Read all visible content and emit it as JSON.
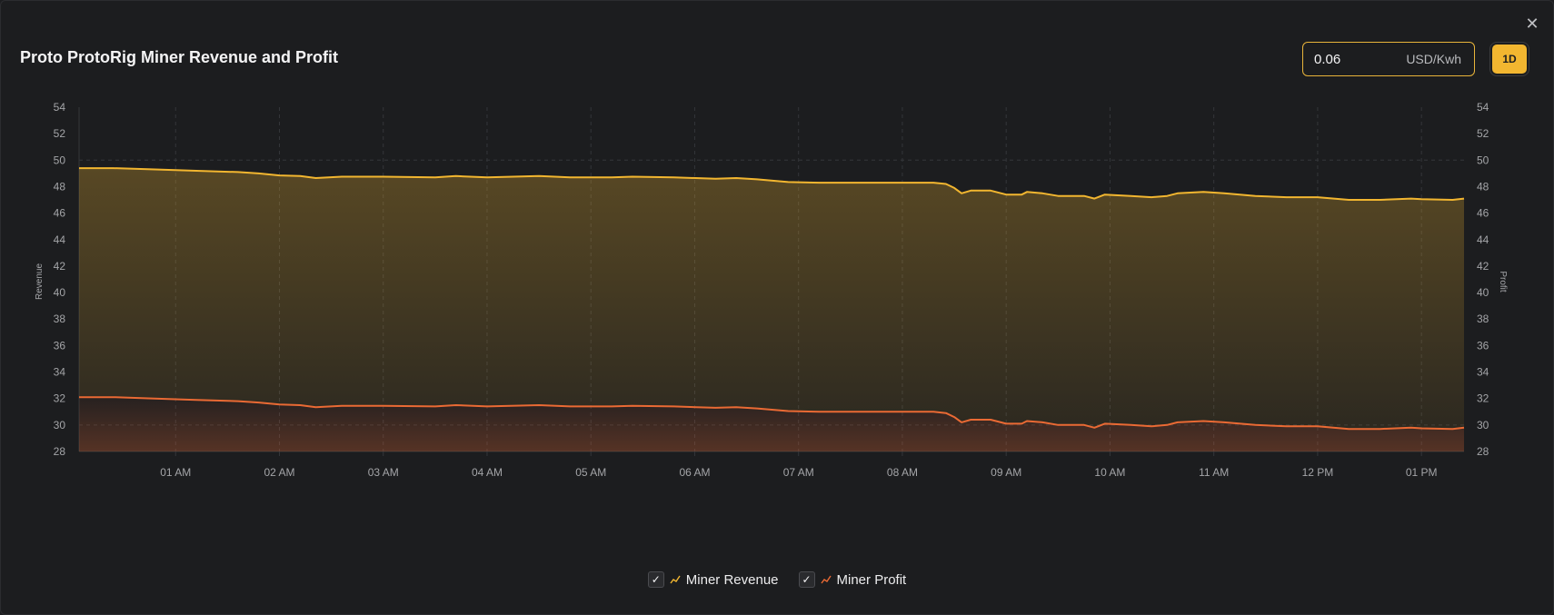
{
  "header": {
    "title": "Proto ProtoRig Miner Revenue and Profit",
    "price_value": "0.06",
    "price_unit": "USD/Kwh",
    "range_button": "1D",
    "close_symbol": "✕"
  },
  "colors": {
    "revenue": "#f2b630",
    "profit": "#ea6a34",
    "grid": "#34363a",
    "background": "#1c1d1f"
  },
  "legend": [
    {
      "label": "Miner Revenue",
      "checked": true,
      "color": "#f2b630"
    },
    {
      "label": "Miner Profit",
      "checked": true,
      "color": "#ea6a34"
    }
  ],
  "chart_data": {
    "type": "area",
    "ylabel": "Revenue",
    "y2label": "Profit",
    "ylim": [
      28,
      54
    ],
    "y2lim": [
      28,
      54
    ],
    "yticks": [
      28,
      30,
      32,
      34,
      36,
      38,
      40,
      42,
      44,
      46,
      48,
      50,
      52,
      54
    ],
    "xlim": [
      0.07,
      13.41
    ],
    "xticks": [
      {
        "x": 1,
        "label": "01 AM"
      },
      {
        "x": 2,
        "label": "02 AM"
      },
      {
        "x": 3,
        "label": "03 AM"
      },
      {
        "x": 4,
        "label": "04 AM"
      },
      {
        "x": 5,
        "label": "05 AM"
      },
      {
        "x": 6,
        "label": "06 AM"
      },
      {
        "x": 7,
        "label": "07 AM"
      },
      {
        "x": 8,
        "label": "08 AM"
      },
      {
        "x": 9,
        "label": "09 AM"
      },
      {
        "x": 10,
        "label": "10 AM"
      },
      {
        "x": 11,
        "label": "11 AM"
      },
      {
        "x": 12,
        "label": "12 PM"
      },
      {
        "x": 13,
        "label": "01 PM"
      }
    ],
    "grid": true,
    "legend_position": "bottom-center",
    "series": [
      {
        "name": "Miner Revenue",
        "axis": "left",
        "points": [
          [
            0.07,
            49.4
          ],
          [
            0.4,
            49.4
          ],
          [
            0.8,
            49.3
          ],
          [
            1.2,
            49.2
          ],
          [
            1.6,
            49.1
          ],
          [
            1.8,
            49.0
          ],
          [
            2.0,
            48.85
          ],
          [
            2.2,
            48.8
          ],
          [
            2.35,
            48.65
          ],
          [
            2.6,
            48.75
          ],
          [
            3.0,
            48.75
          ],
          [
            3.5,
            48.7
          ],
          [
            3.7,
            48.8
          ],
          [
            4.0,
            48.7
          ],
          [
            4.5,
            48.8
          ],
          [
            4.8,
            48.7
          ],
          [
            5.2,
            48.7
          ],
          [
            5.4,
            48.75
          ],
          [
            5.8,
            48.7
          ],
          [
            6.2,
            48.6
          ],
          [
            6.4,
            48.65
          ],
          [
            6.6,
            48.55
          ],
          [
            6.9,
            48.35
          ],
          [
            7.2,
            48.3
          ],
          [
            7.6,
            48.3
          ],
          [
            8.0,
            48.3
          ],
          [
            8.3,
            48.3
          ],
          [
            8.42,
            48.2
          ],
          [
            8.5,
            47.9
          ],
          [
            8.57,
            47.5
          ],
          [
            8.66,
            47.7
          ],
          [
            8.85,
            47.7
          ],
          [
            9.0,
            47.4
          ],
          [
            9.15,
            47.4
          ],
          [
            9.2,
            47.6
          ],
          [
            9.35,
            47.5
          ],
          [
            9.5,
            47.3
          ],
          [
            9.75,
            47.3
          ],
          [
            9.85,
            47.1
          ],
          [
            9.95,
            47.4
          ],
          [
            10.2,
            47.3
          ],
          [
            10.4,
            47.2
          ],
          [
            10.55,
            47.3
          ],
          [
            10.65,
            47.5
          ],
          [
            10.9,
            47.6
          ],
          [
            11.1,
            47.5
          ],
          [
            11.4,
            47.3
          ],
          [
            11.7,
            47.2
          ],
          [
            12.0,
            47.2
          ],
          [
            12.3,
            47.0
          ],
          [
            12.6,
            47.0
          ],
          [
            12.9,
            47.1
          ],
          [
            13.0,
            47.05
          ],
          [
            13.3,
            47.0
          ],
          [
            13.41,
            47.1
          ]
        ]
      },
      {
        "name": "Miner Profit",
        "axis": "right",
        "points": [
          [
            0.07,
            32.1
          ],
          [
            0.4,
            32.1
          ],
          [
            0.8,
            32.0
          ],
          [
            1.2,
            31.9
          ],
          [
            1.6,
            31.8
          ],
          [
            1.8,
            31.7
          ],
          [
            2.0,
            31.55
          ],
          [
            2.2,
            31.5
          ],
          [
            2.35,
            31.35
          ],
          [
            2.6,
            31.45
          ],
          [
            3.0,
            31.45
          ],
          [
            3.5,
            31.4
          ],
          [
            3.7,
            31.5
          ],
          [
            4.0,
            31.4
          ],
          [
            4.5,
            31.5
          ],
          [
            4.8,
            31.4
          ],
          [
            5.2,
            31.4
          ],
          [
            5.4,
            31.45
          ],
          [
            5.8,
            31.4
          ],
          [
            6.2,
            31.3
          ],
          [
            6.4,
            31.35
          ],
          [
            6.6,
            31.25
          ],
          [
            6.9,
            31.05
          ],
          [
            7.2,
            31.0
          ],
          [
            7.6,
            31.0
          ],
          [
            8.0,
            31.0
          ],
          [
            8.3,
            31.0
          ],
          [
            8.42,
            30.9
          ],
          [
            8.5,
            30.6
          ],
          [
            8.57,
            30.2
          ],
          [
            8.66,
            30.4
          ],
          [
            8.85,
            30.4
          ],
          [
            9.0,
            30.1
          ],
          [
            9.15,
            30.1
          ],
          [
            9.2,
            30.3
          ],
          [
            9.35,
            30.2
          ],
          [
            9.5,
            30.0
          ],
          [
            9.75,
            30.0
          ],
          [
            9.85,
            29.8
          ],
          [
            9.95,
            30.1
          ],
          [
            10.2,
            30.0
          ],
          [
            10.4,
            29.9
          ],
          [
            10.55,
            30.0
          ],
          [
            10.65,
            30.2
          ],
          [
            10.9,
            30.3
          ],
          [
            11.1,
            30.2
          ],
          [
            11.4,
            30.0
          ],
          [
            11.7,
            29.9
          ],
          [
            12.0,
            29.9
          ],
          [
            12.3,
            29.7
          ],
          [
            12.6,
            29.7
          ],
          [
            12.9,
            29.8
          ],
          [
            13.0,
            29.75
          ],
          [
            13.3,
            29.7
          ],
          [
            13.41,
            29.8
          ]
        ]
      }
    ]
  }
}
